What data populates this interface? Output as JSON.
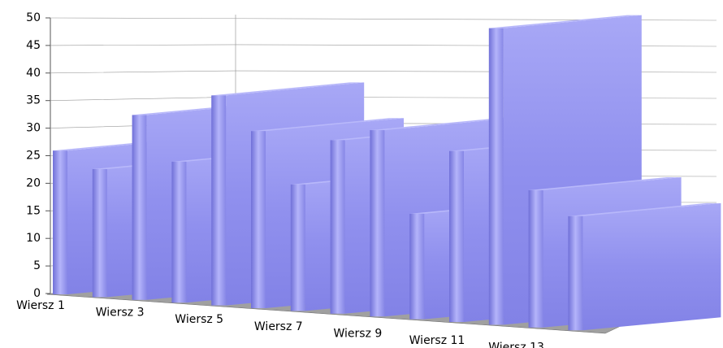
{
  "chart_data": {
    "type": "bar3d",
    "categories": [
      "Wiersz 1",
      null,
      "Wiersz 3",
      null,
      "Wiersz 5",
      null,
      "Wiersz 7",
      null,
      "Wiersz 9",
      null,
      "Wiersz 11",
      null,
      "Wiersz 13",
      null
    ],
    "values": [
      26,
      23,
      33,
      25,
      37,
      31,
      22,
      30,
      32,
      18,
      29,
      50,
      23,
      19
    ],
    "color": "#8c8cf0",
    "ylim": [
      0,
      50
    ],
    "yticks": [
      0,
      5,
      10,
      15,
      20,
      25,
      30,
      35,
      40,
      45,
      50
    ],
    "grid": true
  }
}
